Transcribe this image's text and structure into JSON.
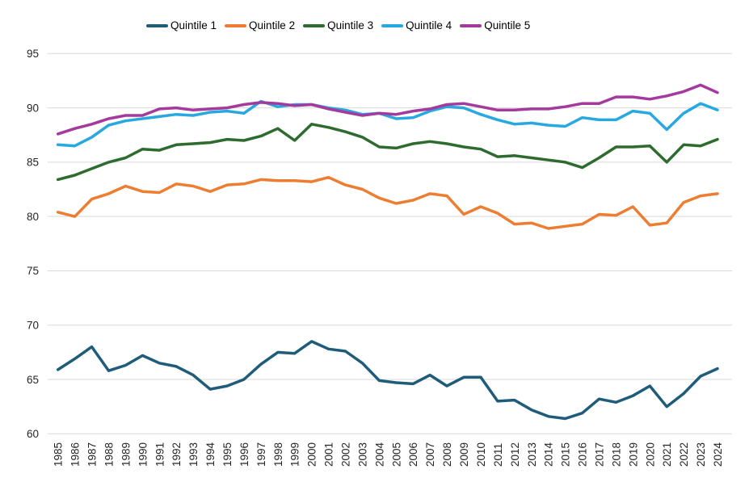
{
  "chart_data": {
    "type": "line",
    "title": "",
    "xlabel": "",
    "ylabel": "",
    "ylim": [
      60,
      95
    ],
    "ytick_step": 5,
    "grid": true,
    "legend_position": "top",
    "x_tick_rotation": 90,
    "grid_color": "#D9D9D9",
    "tick_label_color": "#262626",
    "x": [
      "1985",
      "1986",
      "1987",
      "1988",
      "1989",
      "1990",
      "1991",
      "1992",
      "1993",
      "1994",
      "1995",
      "1996",
      "1997",
      "1998",
      "1999",
      "2000",
      "2001",
      "2002",
      "2003",
      "2004",
      "2005",
      "2006",
      "2007",
      "2008",
      "2009",
      "2010",
      "2011",
      "2012",
      "2013",
      "2014",
      "2015",
      "2016",
      "2017",
      "2018",
      "2019",
      "2020",
      "2021",
      "2022",
      "2023",
      "2024"
    ],
    "series": [
      {
        "name": "Quintile 1",
        "color": "#1F5C7A",
        "values": [
          65.9,
          66.9,
          68.0,
          65.8,
          66.3,
          67.2,
          66.5,
          66.2,
          65.4,
          64.1,
          64.4,
          65.0,
          66.4,
          67.5,
          67.4,
          68.5,
          67.8,
          67.6,
          66.5,
          64.9,
          64.7,
          64.6,
          65.4,
          64.4,
          65.2,
          65.2,
          63.0,
          63.1,
          62.2,
          61.6,
          61.4,
          61.9,
          63.2,
          62.9,
          63.5,
          64.4,
          62.5,
          63.7,
          65.3,
          66.0
        ]
      },
      {
        "name": "Quintile 2",
        "color": "#ED7D31",
        "values": [
          80.4,
          80.0,
          81.6,
          82.1,
          82.8,
          82.3,
          82.2,
          83.0,
          82.8,
          82.3,
          82.9,
          83.0,
          83.4,
          83.3,
          83.3,
          83.2,
          83.6,
          82.9,
          82.5,
          81.7,
          81.2,
          81.5,
          82.1,
          81.9,
          80.2,
          80.9,
          80.3,
          79.3,
          79.4,
          78.9,
          79.1,
          79.3,
          80.2,
          80.1,
          80.9,
          79.2,
          79.4,
          81.3,
          81.9,
          82.1
        ]
      },
      {
        "name": "Quintile 3",
        "color": "#2E6B2E",
        "values": [
          83.4,
          83.8,
          84.4,
          85.0,
          85.4,
          86.2,
          86.1,
          86.6,
          86.7,
          86.8,
          87.1,
          87.0,
          87.4,
          88.1,
          87.0,
          88.5,
          88.2,
          87.8,
          87.3,
          86.4,
          86.3,
          86.7,
          86.9,
          86.7,
          86.4,
          86.2,
          85.5,
          85.6,
          85.4,
          85.2,
          85.0,
          84.5,
          85.4,
          86.4,
          86.4,
          86.5,
          85.0,
          86.6,
          86.5,
          87.1
        ]
      },
      {
        "name": "Quintile 4",
        "color": "#28A8E0",
        "values": [
          86.6,
          86.5,
          87.3,
          88.4,
          88.8,
          89.0,
          89.2,
          89.4,
          89.3,
          89.6,
          89.7,
          89.5,
          90.6,
          90.1,
          90.3,
          90.3,
          90.0,
          89.8,
          89.4,
          89.5,
          89.0,
          89.1,
          89.7,
          90.1,
          90.0,
          89.4,
          88.9,
          88.5,
          88.6,
          88.4,
          88.3,
          89.1,
          88.9,
          88.9,
          89.7,
          89.5,
          88.0,
          89.5,
          90.4,
          89.8
        ]
      },
      {
        "name": "Quintile 5",
        "color": "#A43A9E",
        "values": [
          87.6,
          88.1,
          88.5,
          89.0,
          89.3,
          89.3,
          89.9,
          90.0,
          89.8,
          89.9,
          90.0,
          90.3,
          90.5,
          90.4,
          90.2,
          90.3,
          89.9,
          89.6,
          89.3,
          89.5,
          89.4,
          89.7,
          89.9,
          90.3,
          90.4,
          90.1,
          89.8,
          89.8,
          89.9,
          89.9,
          90.1,
          90.4,
          90.4,
          91.0,
          91.0,
          90.8,
          91.1,
          91.5,
          92.1,
          91.4
        ]
      }
    ],
    "yticks": [
      "60",
      "65",
      "70",
      "75",
      "80",
      "85",
      "90",
      "95"
    ]
  }
}
